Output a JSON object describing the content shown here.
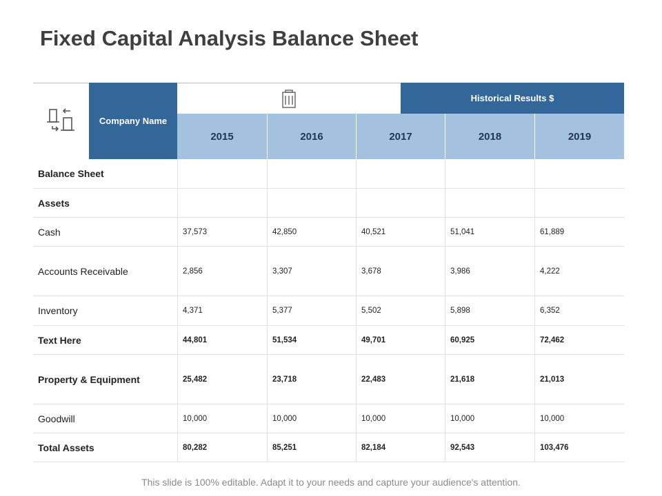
{
  "title": "Fixed Capital Analysis Balance Sheet",
  "header": {
    "company_name": "Company Name",
    "historical_results": "Historical Results $",
    "years": [
      "2015",
      "2016",
      "2017",
      "2018",
      "2019"
    ]
  },
  "table": {
    "rows": [
      {
        "label": "Balance Sheet",
        "bold": true,
        "values": []
      },
      {
        "label": "Assets",
        "bold": true,
        "values": []
      },
      {
        "label": "Cash",
        "bold": false,
        "values": [
          "37,573",
          "42,850",
          "40,521",
          "51,041",
          "61,889"
        ]
      },
      {
        "label": "Accounts Receivable",
        "bold": false,
        "values": [
          "2,856",
          "3,307",
          "3,678",
          "3,986",
          "4,222"
        ]
      },
      {
        "label": "Inventory",
        "bold": false,
        "values": [
          "4,371",
          "5,377",
          "5,502",
          "5,898",
          "6,352"
        ]
      },
      {
        "label": "Text Here",
        "bold": true,
        "values": [
          "44,801",
          "51,534",
          "49,701",
          "60,925",
          "72,462"
        ]
      },
      {
        "label": "Property & Equipment",
        "bold": true,
        "values": [
          "25,482",
          "23,718",
          "22,483",
          "21,618",
          "21,013"
        ]
      },
      {
        "label": "Goodwill",
        "bold": false,
        "values": [
          "10,000",
          "10,000",
          "10,000",
          "10,000",
          "10,000"
        ]
      },
      {
        "label": "Total Assets",
        "bold": true,
        "values": [
          "80,282",
          "85,251",
          "82,184",
          "92,543",
          "103,476"
        ]
      }
    ]
  },
  "footer": "This slide is 100% editable. Adapt it to your needs and capture your audience's attention."
}
